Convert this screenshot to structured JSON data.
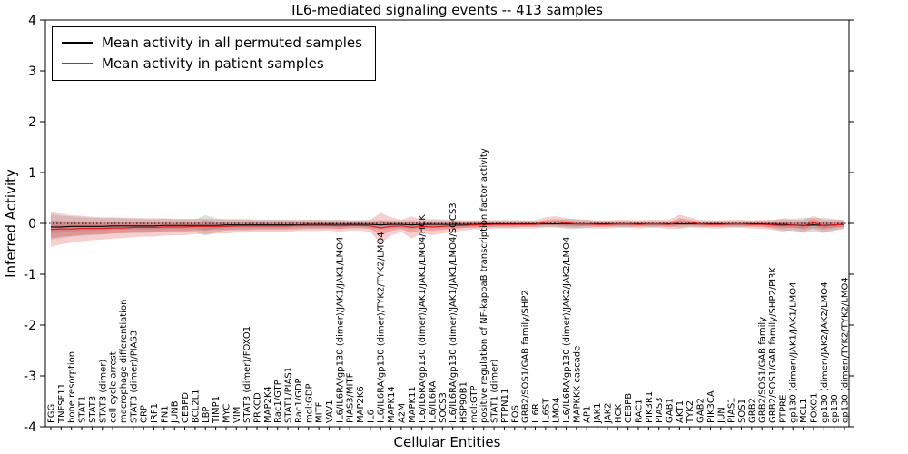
{
  "chart_data": {
    "type": "line",
    "title": "IL6-mediated signaling events -- 413 samples",
    "xlabel": "Cellular Entities",
    "ylabel": "Inferred Activity",
    "ylim": [
      -4,
      4
    ],
    "yticks": [
      4,
      3,
      2,
      1,
      0,
      -1,
      -2,
      -3,
      -4
    ],
    "grid": false,
    "zero_line": "dotted",
    "legend_position": "upper left",
    "categories": [
      "FGG",
      "TNFSF11",
      "bone resorption",
      "STAT1",
      "STAT3",
      "STAT3 (dimer)",
      "cell cycle arrest",
      "macrophage differentiation",
      "STAT3 (dimer)/PIAS3",
      "CRP",
      "IRF1",
      "FN1",
      "JUNB",
      "CEBPD",
      "BCL2L1",
      "LBP",
      "TIMP1",
      "MYC",
      "VIM",
      "STAT3 (dimer)/FOXO1",
      "PRKCD",
      "MAP2K4",
      "Rac1/GTP",
      "STAT1/PIAS1",
      "Rac1/GDP",
      "mol:GDP",
      "MITF",
      "VAV1",
      "IL6/IL6RA/gp130 (dimer)/JAK1/JAK1/LMO4",
      "PIAS3/MITF",
      "MAP2K6",
      "IL6",
      "IL6/IL6RA/gp130 (dimer)/TYK2/TYK2/LMO4",
      "MAPK14",
      "A2M",
      "MAPK11",
      "IL6/IL6RA/gp130 (dimer)/JAK1/JAK1/LMO4/HCK",
      "IL6/IL6RA",
      "SOCS3",
      "IL6/IL6RA/gp130 (dimer)/JAK1/JAK1/LMO4/SOCS3",
      "HSP90B1",
      "mol:GTP",
      "positive regulation of NF-kappaB transcription factor activity",
      "STAT1 (dimer)",
      "PTPN11",
      "FOS",
      "GRB2/SOS1/GAB family/SHP2",
      "IL6R",
      "IL6ST",
      "LMO4",
      "IL6/IL6RA/gp130 (dimer)/JAK2/JAK2/LMO4",
      "MAPKKK cascade",
      "AP1",
      "JAK1",
      "JAK2",
      "HCK",
      "CEBPB",
      "RAC1",
      "PIK3R1",
      "PIAS3",
      "GAB1",
      "AKT1",
      "TYK2",
      "GAB2",
      "PIK3CA",
      "JUN",
      "PIAS1",
      "SOS1",
      "GRB2",
      "GRB2/SOS1/GAB family",
      "GRB2/SOS1/GAB family/SHP2/PI3K",
      "PTPRE",
      "gp130 (dimer)/JAK1/JAK1/LMO4",
      "MCL1",
      "FOXO1",
      "gp130 (dimer)/JAK2/JAK2/LMO4",
      "gp130",
      "gp130 (dimer)/TYK2/TYK2/LMO4"
    ],
    "series": [
      {
        "name": "Mean activity in all permuted samples",
        "color": "#000000",
        "band_color": "#8c8c8c",
        "values": [
          -0.07,
          -0.07,
          -0.06,
          -0.06,
          -0.06,
          -0.06,
          -0.05,
          -0.05,
          -0.05,
          -0.05,
          -0.05,
          -0.04,
          -0.04,
          -0.04,
          -0.04,
          -0.04,
          -0.04,
          -0.03,
          -0.03,
          -0.03,
          -0.03,
          -0.03,
          -0.03,
          -0.03,
          -0.03,
          -0.02,
          -0.02,
          -0.02,
          -0.02,
          -0.02,
          -0.02,
          -0.02,
          -0.03,
          -0.02,
          -0.02,
          -0.03,
          -0.02,
          -0.02,
          -0.02,
          -0.02,
          -0.02,
          -0.02,
          -0.01,
          -0.01,
          -0.01,
          -0.01,
          -0.01,
          -0.01,
          -0.01,
          -0.01,
          -0.01,
          -0.01,
          -0.01,
          -0.01,
          -0.01,
          -0.01,
          -0.01,
          -0.01,
          -0.01,
          -0.01,
          -0.01,
          -0.01,
          -0.01,
          -0.01,
          -0.01,
          -0.01,
          -0.01,
          -0.01,
          -0.01,
          -0.01,
          -0.02,
          -0.02,
          -0.03,
          -0.04,
          -0.03,
          -0.04,
          -0.03,
          -0.02
        ],
        "band_halfwidth": [
          0.25,
          0.22,
          0.2,
          0.18,
          0.17,
          0.16,
          0.15,
          0.15,
          0.14,
          0.14,
          0.13,
          0.13,
          0.12,
          0.12,
          0.12,
          0.2,
          0.14,
          0.11,
          0.11,
          0.11,
          0.1,
          0.1,
          0.1,
          0.1,
          0.09,
          0.09,
          0.09,
          0.09,
          0.09,
          0.08,
          0.08,
          0.08,
          0.09,
          0.08,
          0.08,
          0.09,
          0.08,
          0.08,
          0.08,
          0.08,
          0.07,
          0.07,
          0.07,
          0.07,
          0.07,
          0.07,
          0.06,
          0.06,
          0.06,
          0.06,
          0.1,
          0.1,
          0.08,
          0.06,
          0.06,
          0.06,
          0.06,
          0.06,
          0.06,
          0.06,
          0.06,
          0.07,
          0.06,
          0.06,
          0.06,
          0.06,
          0.06,
          0.06,
          0.06,
          0.06,
          0.08,
          0.12,
          0.12,
          0.15,
          0.13,
          0.15,
          0.12,
          0.08
        ]
      },
      {
        "name": "Mean activity in patient samples",
        "color": "#dd1c1c",
        "band_color": "#e06060",
        "values": [
          -0.12,
          -0.11,
          -0.11,
          -0.1,
          -0.1,
          -0.1,
          -0.09,
          -0.09,
          -0.08,
          -0.08,
          -0.08,
          -0.07,
          -0.07,
          -0.07,
          -0.06,
          -0.06,
          -0.06,
          -0.06,
          -0.05,
          -0.05,
          -0.05,
          -0.05,
          -0.05,
          -0.05,
          -0.04,
          -0.04,
          -0.04,
          -0.04,
          -0.05,
          -0.04,
          -0.04,
          -0.05,
          -0.09,
          -0.06,
          -0.05,
          -0.08,
          -0.06,
          -0.07,
          -0.06,
          -0.05,
          -0.04,
          -0.03,
          -0.03,
          -0.02,
          -0.02,
          -0.02,
          -0.02,
          -0.02,
          0.02,
          0.03,
          0.01,
          -0.01,
          -0.01,
          -0.02,
          -0.02,
          -0.01,
          -0.01,
          -0.02,
          -0.01,
          -0.01,
          -0.02,
          0.03,
          0.02,
          -0.01,
          -0.02,
          -0.02,
          -0.01,
          -0.01,
          -0.02,
          -0.02,
          -0.03,
          -0.04,
          -0.03,
          -0.05,
          0.02,
          -0.05,
          -0.03,
          -0.02
        ],
        "band_halfwidth": [
          0.34,
          0.3,
          0.27,
          0.25,
          0.23,
          0.22,
          0.21,
          0.2,
          0.19,
          0.18,
          0.18,
          0.17,
          0.16,
          0.16,
          0.15,
          0.15,
          0.14,
          0.14,
          0.13,
          0.13,
          0.12,
          0.12,
          0.12,
          0.12,
          0.11,
          0.11,
          0.11,
          0.1,
          0.12,
          0.1,
          0.1,
          0.12,
          0.3,
          0.18,
          0.12,
          0.22,
          0.14,
          0.16,
          0.14,
          0.12,
          0.1,
          0.09,
          0.09,
          0.08,
          0.08,
          0.08,
          0.08,
          0.08,
          0.1,
          0.11,
          0.09,
          0.08,
          0.08,
          0.08,
          0.08,
          0.08,
          0.08,
          0.08,
          0.08,
          0.08,
          0.09,
          0.14,
          0.1,
          0.08,
          0.08,
          0.08,
          0.08,
          0.08,
          0.08,
          0.09,
          0.1,
          0.12,
          0.1,
          0.12,
          0.13,
          0.12,
          0.1,
          0.09
        ]
      }
    ]
  }
}
